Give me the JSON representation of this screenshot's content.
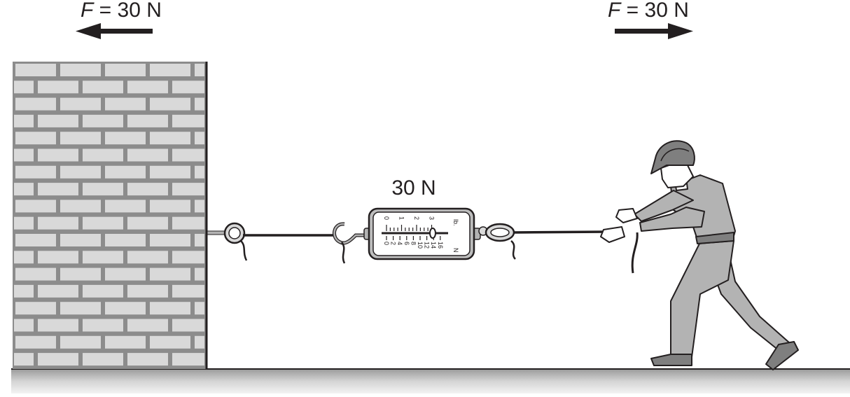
{
  "left_force": {
    "symbol": "F",
    "rest": " = 30 N",
    "direction": "left"
  },
  "right_force": {
    "symbol": "F",
    "rest": " = 30 N",
    "direction": "right"
  },
  "scale_reading": "30 N",
  "scale": {
    "lb_unit": "lb.",
    "n_unit": "N",
    "lb_ticks": [
      "0",
      "1",
      "2",
      "3"
    ],
    "n_ticks": [
      "0",
      "2",
      "4",
      "6",
      "8",
      "10",
      "12",
      "14",
      "16"
    ]
  },
  "colors": {
    "line": "#231f20",
    "brick": "#d9d9d9",
    "mortar": "#8c8c8c",
    "body_fill": "#b3b3b3",
    "ground": "#bdbdbd"
  }
}
